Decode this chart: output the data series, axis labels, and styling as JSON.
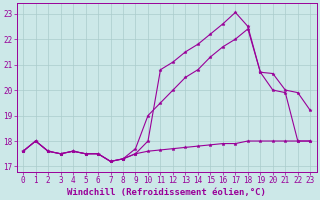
{
  "bg_color": "#cce8e8",
  "grid_color": "#aacccc",
  "line_color": "#990099",
  "marker": "*",
  "xlabel": "Windchill (Refroidissement éolien,°C)",
  "xlabel_fontsize": 6.5,
  "tick_fontsize": 5.5,
  "ylim": [
    16.8,
    23.4
  ],
  "xlim": [
    -0.5,
    23.5
  ],
  "yticks": [
    17,
    18,
    19,
    20,
    21,
    22,
    23
  ],
  "xticks": [
    0,
    1,
    2,
    3,
    4,
    5,
    6,
    7,
    8,
    9,
    10,
    11,
    12,
    13,
    14,
    15,
    16,
    17,
    18,
    19,
    20,
    21,
    22,
    23
  ],
  "line1_x": [
    0,
    1,
    2,
    3,
    4,
    5,
    6,
    7,
    8,
    9,
    10,
    11,
    12,
    13,
    14,
    15,
    16,
    17,
    18,
    19,
    20,
    21,
    22,
    23
  ],
  "line1_y": [
    17.6,
    18.0,
    17.6,
    17.5,
    17.6,
    17.5,
    17.5,
    17.2,
    17.3,
    17.5,
    17.6,
    17.65,
    17.7,
    17.75,
    17.8,
    17.85,
    17.9,
    17.9,
    18.0,
    18.0,
    18.0,
    18.0,
    18.0,
    18.0
  ],
  "line2_x": [
    0,
    1,
    2,
    3,
    4,
    5,
    6,
    7,
    8,
    9,
    10,
    11,
    12,
    13,
    14,
    15,
    16,
    17,
    18,
    19,
    20,
    21,
    22,
    23
  ],
  "line2_y": [
    17.6,
    18.0,
    17.6,
    17.5,
    17.6,
    17.5,
    17.5,
    17.2,
    17.3,
    17.5,
    18.0,
    20.8,
    21.1,
    21.5,
    21.8,
    22.2,
    22.6,
    23.05,
    22.5,
    20.7,
    20.0,
    19.9,
    18.0,
    18.0
  ],
  "line3_x": [
    0,
    1,
    2,
    3,
    4,
    5,
    6,
    7,
    8,
    9,
    10,
    11,
    12,
    13,
    14,
    15,
    16,
    17,
    18,
    19,
    20,
    21,
    22,
    23
  ],
  "line3_y": [
    17.6,
    18.0,
    17.6,
    17.5,
    17.6,
    17.5,
    17.5,
    17.2,
    17.3,
    17.7,
    19.0,
    19.5,
    20.0,
    20.5,
    20.8,
    21.3,
    21.7,
    22.0,
    22.4,
    20.7,
    20.65,
    20.0,
    19.9,
    19.2
  ]
}
